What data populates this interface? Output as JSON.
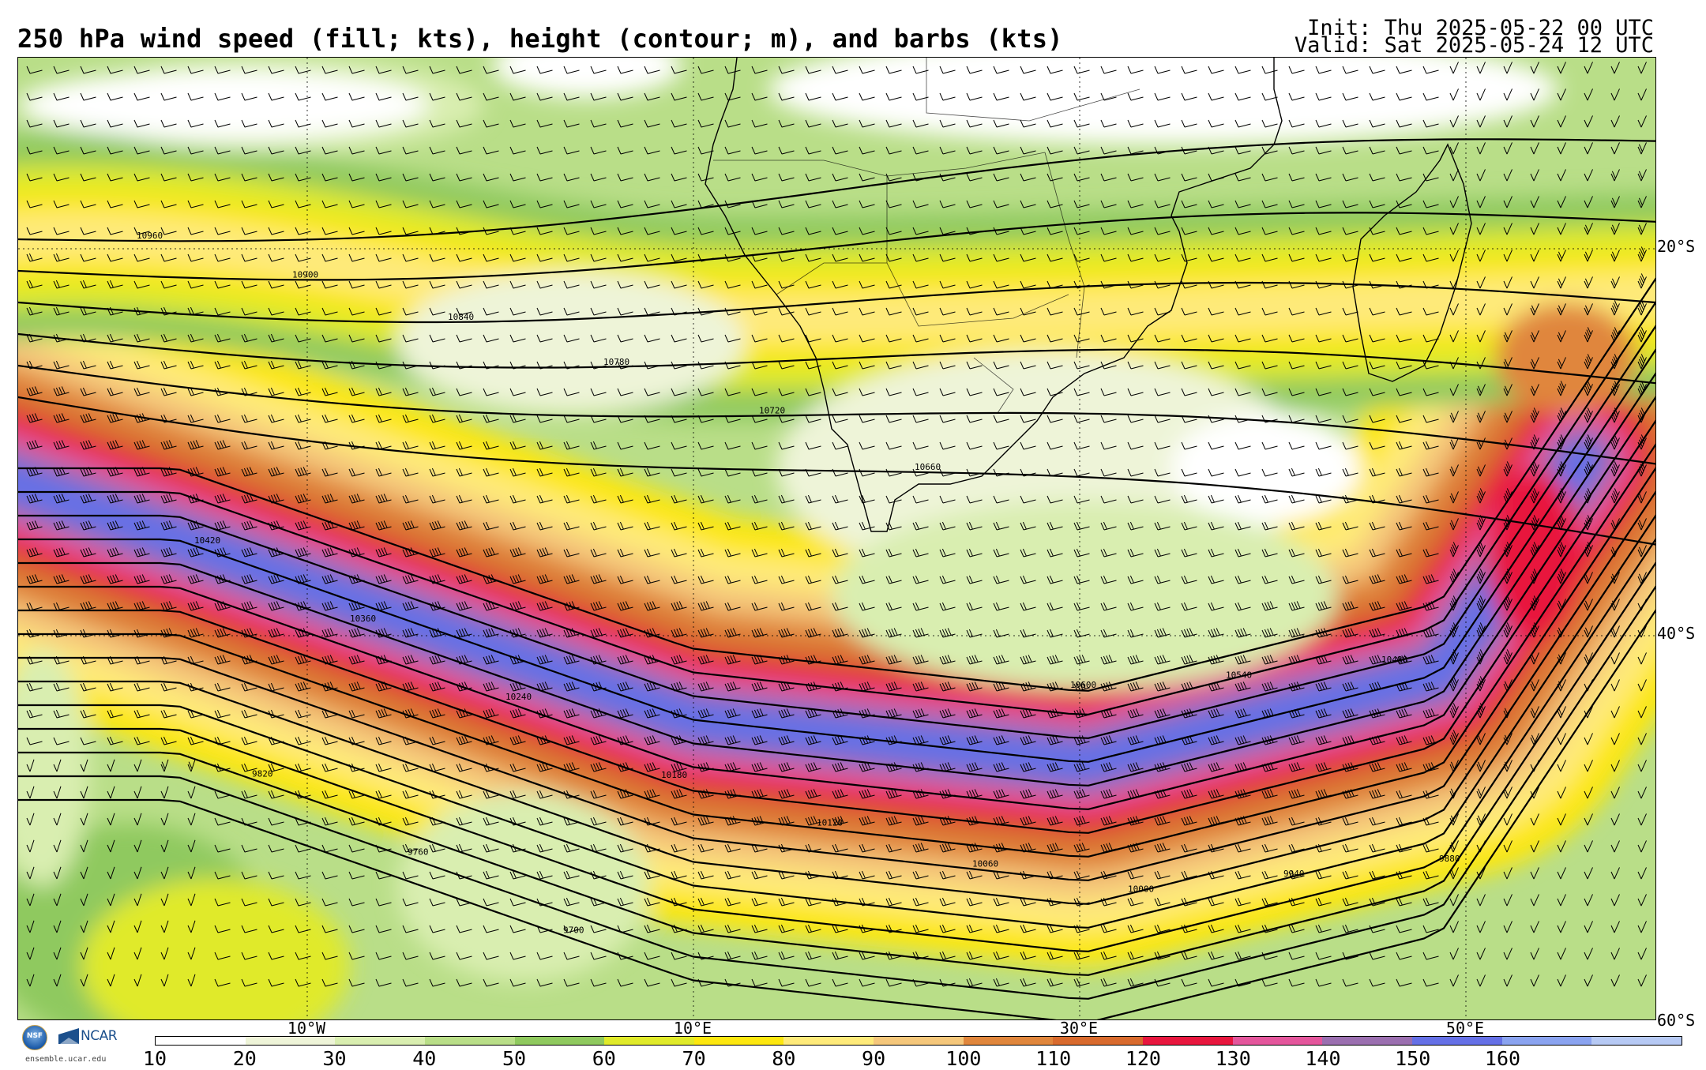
{
  "header": {
    "title": "250 hPa wind speed (fill; kts), height (contour; m), and barbs (kts)",
    "init": "Init: Thu 2025-05-22 00 UTC",
    "valid": "Valid: Sat 2025-05-24 12 UTC"
  },
  "map": {
    "lat_labels": [
      "20°S",
      "40°S",
      "60°S"
    ],
    "lon_labels": [
      "10°W",
      "10°E",
      "30°E",
      "50°E"
    ],
    "contour_labels": [
      "10960",
      "10900",
      "10840",
      "10780",
      "10720",
      "10660",
      "10600",
      "10540",
      "10480",
      "10420",
      "10360",
      "10240",
      "10180",
      "10120",
      "10060",
      "10000",
      "9940",
      "9880",
      "9820",
      "9760",
      "9700"
    ],
    "layers": [
      "wind-speed-fill",
      "height-contours",
      "wind-barbs",
      "coastlines",
      "country-borders",
      "graticule"
    ]
  },
  "colorbar": {
    "ticks": [
      "10",
      "20",
      "30",
      "40",
      "50",
      "60",
      "70",
      "80",
      "90",
      "100",
      "110",
      "120",
      "130",
      "140",
      "150",
      "160"
    ],
    "colors": [
      "#ffffff",
      "#eef4d8",
      "#d9eeb0",
      "#b9de88",
      "#8fc95e",
      "#e0ea2a",
      "#fde70f",
      "#feea7a",
      "#f5c77b",
      "#e0863c",
      "#d86a2d",
      "#e8163e",
      "#e4569c",
      "#9b6fb0",
      "#6570e6",
      "#8aa3f0",
      "#b6c9f4"
    ]
  },
  "credits": {
    "nsf": "NSF",
    "ncar": "NCAR",
    "site": "ensemble.ucar.edu"
  }
}
